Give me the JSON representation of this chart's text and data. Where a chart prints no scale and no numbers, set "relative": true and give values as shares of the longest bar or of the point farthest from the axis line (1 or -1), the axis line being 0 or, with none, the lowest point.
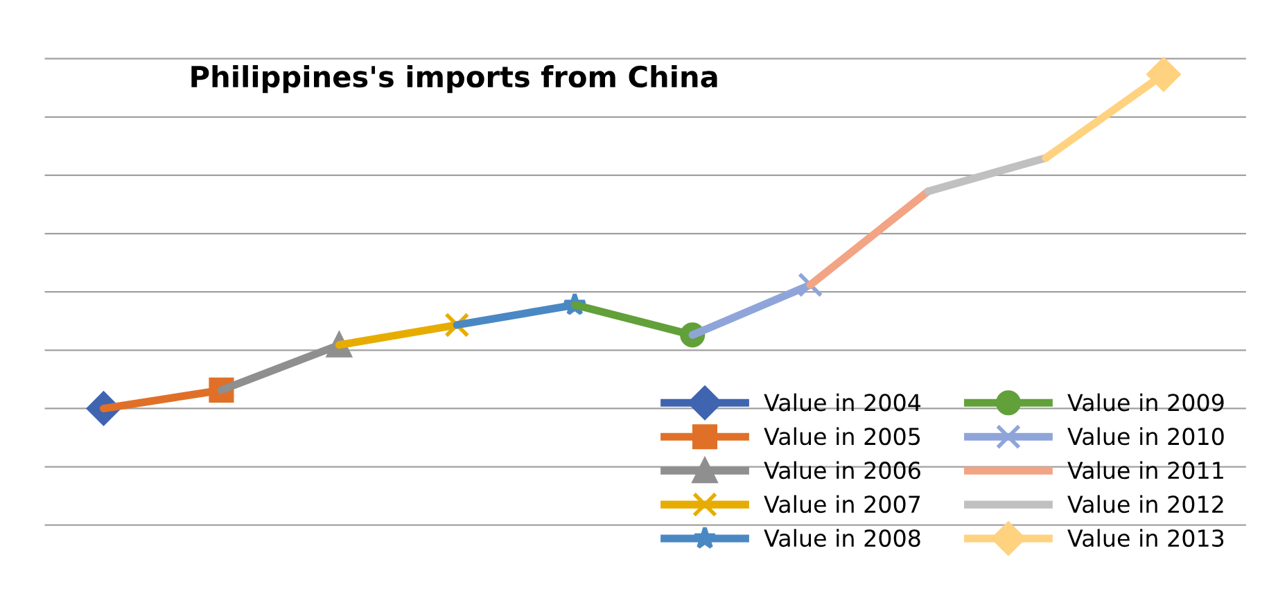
{
  "chart_data": {
    "type": "line",
    "title": "Philippines's imports from China",
    "relative": true,
    "grid": "y",
    "legend": "bottom right",
    "line_style": "solid",
    "categories": [
      null,
      null,
      null,
      null,
      null,
      null,
      null,
      null,
      null,
      null
    ],
    "series": [
      {
        "name": "Value in 2004",
        "color": "#3f64b0",
        "marker": "diamond",
        "values": [
          0,
          null,
          null,
          null,
          null,
          null,
          null,
          null,
          null,
          null
        ]
      },
      {
        "name": "Value in 2005",
        "color": "#e07028",
        "marker": "square",
        "values": [
          0,
          0.055,
          null,
          null,
          null,
          null,
          null,
          null,
          null,
          null
        ]
      },
      {
        "name": "Value in 2006",
        "color": "#8f8f8f",
        "marker": "triangle",
        "values": [
          null,
          0.055,
          0.19,
          null,
          null,
          null,
          null,
          null,
          null,
          null
        ]
      },
      {
        "name": "Value in 2007",
        "color": "#e6ad00",
        "marker": "cross",
        "values": [
          null,
          null,
          0.19,
          0.25,
          null,
          null,
          null,
          null,
          null,
          null
        ]
      },
      {
        "name": "Value in 2008",
        "color": "#4a88c4",
        "marker": "star",
        "values": [
          null,
          null,
          null,
          0.25,
          0.31,
          null,
          null,
          null,
          null,
          null
        ]
      },
      {
        "name": "Value in 2009",
        "color": "#62a03a",
        "marker": "circle",
        "values": [
          null,
          null,
          null,
          null,
          0.31,
          0.22,
          null,
          null,
          null,
          null
        ]
      },
      {
        "name": "Value in 2010",
        "color": "#8fa5d9",
        "marker": "cross",
        "values": [
          null,
          null,
          null,
          null,
          null,
          0.22,
          0.37,
          null,
          null,
          null
        ]
      },
      {
        "name": "Value in 2011",
        "color": "#f2a484",
        "marker": "none",
        "values": [
          null,
          null,
          null,
          null,
          null,
          null,
          0.37,
          0.65,
          null,
          null
        ]
      },
      {
        "name": "Value in 2012",
        "color": "#c0c0c0",
        "marker": "none",
        "values": [
          null,
          null,
          null,
          null,
          null,
          null,
          null,
          0.65,
          0.75,
          null
        ]
      },
      {
        "name": "Value in 2013",
        "color": "#ffd280",
        "marker": "diamond",
        "values": [
          null,
          null,
          null,
          null,
          null,
          null,
          null,
          null,
          0.75,
          1
        ]
      }
    ]
  }
}
